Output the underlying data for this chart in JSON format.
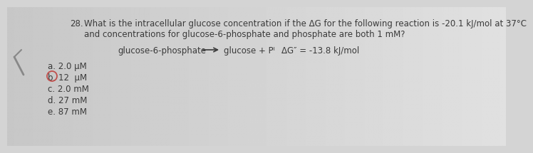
{
  "background_color": "#d4d4d4",
  "question_number": "28.",
  "question_text_line1": "What is the intracellular glucose concentration if the ΔG for the following reaction is -20.1 kJ/mol at 37°C",
  "question_text_line2": "and concentrations for glucose-6-phosphate and phosphate are both 1 mM?",
  "reaction_left": "glucose-6-phosphate",
  "reaction_right": "glucose + Pᴵ",
  "delta_g_std": "ΔG″ = -13.8 kJ/mol",
  "answers": [
    "a. 2.0 μM",
    "b. 12  μM",
    "c. 2.0 mM",
    "d. 27 mM",
    "e. 87 mM"
  ],
  "answer_b_circled": true,
  "circle_color": "#c0504d",
  "text_color": "#3a3a3a",
  "font_size_question": 8.5,
  "font_size_reaction": 8.5,
  "font_size_answers": 8.5
}
